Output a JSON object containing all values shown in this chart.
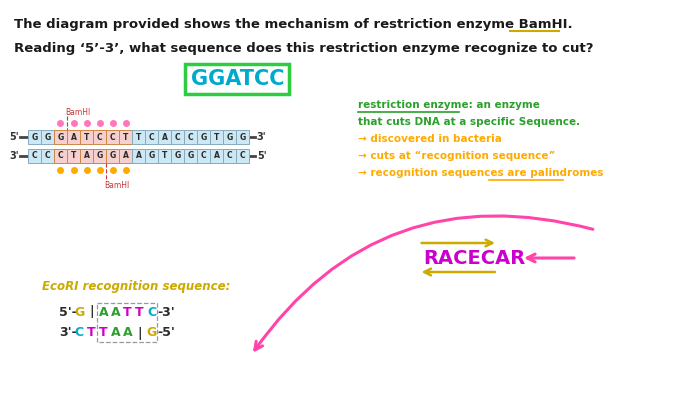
{
  "bg_color": "#ffffff",
  "title_line1": "The diagram provided shows the mechanism of restriction enzyme BamHI.",
  "title_line2": "Reading ‘5’-3’, what sequence does this restriction enzyme recognize to cut?",
  "answer_box_text": "GGATCC",
  "answer_box_color": "#2ecc40",
  "answer_text_color": "#00aacc",
  "top_strand": [
    "G",
    "G",
    "G",
    "A",
    "T",
    "C",
    "C",
    "T",
    "T",
    "C",
    "A",
    "C",
    "C",
    "G",
    "T",
    "G",
    "G"
  ],
  "bot_strand": [
    "C",
    "C",
    "C",
    "T",
    "A",
    "G",
    "G",
    "A",
    "A",
    "G",
    "T",
    "G",
    "G",
    "C",
    "A",
    "C",
    "C"
  ],
  "bamhi_recog_indices": [
    2,
    3,
    4,
    5,
    6,
    7
  ],
  "strand_box_color_normal": "#cde8f5",
  "strand_box_color_recog": "#f5d0ce",
  "bamhi_label_color": "#cc3333",
  "dot_color_top": "#ff77bb",
  "dot_color_bot": "#ffaa00",
  "re_line1": "restriction enzyme: an enzyme",
  "re_line2": "that cuts DNA at a specific Sequence.",
  "re_line3": "→ discovered in bacteria",
  "re_line4": "→ cuts at “recognition sequence”",
  "re_line5": "→ recognition sequences are palindromes",
  "re_text_color": "#2ca02c",
  "re_arrow_lines_color": "#ffaa00",
  "racecar_text": "RACECAR",
  "racecar_color": "#cc00cc",
  "racecar_arrow_color": "#ccaa00",
  "ecori_label": "EcoRI recognition sequence:",
  "ecori_label_color": "#ccaa00",
  "ecori_top_chars": [
    "G",
    "|",
    "A",
    "A",
    "T",
    "T",
    "C"
  ],
  "ecori_bot_chars": [
    "C",
    "T",
    "T",
    "A",
    "A",
    "|",
    "G"
  ],
  "ecori_colors_top": [
    "#ccaa00",
    "#333333",
    "#2ca02c",
    "#2ca02c",
    "#cc00cc",
    "#cc00cc",
    "#00aacc"
  ],
  "ecori_colors_bot": [
    "#00aacc",
    "#cc00cc",
    "#cc00cc",
    "#2ca02c",
    "#2ca02c",
    "#333333",
    "#ccaa00"
  ],
  "pink_arrow_color": "#ff44aa",
  "title_color": "#1a1a1a",
  "bamhi_underline_color": "#ccaa00"
}
